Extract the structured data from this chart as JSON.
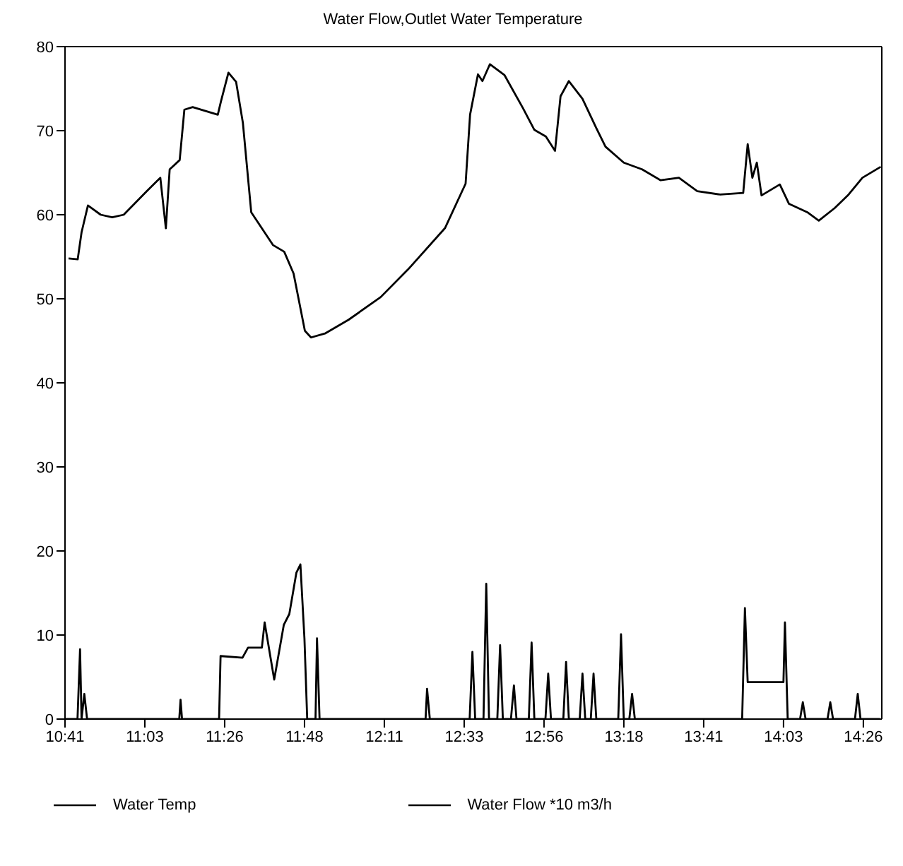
{
  "chart_data": {
    "type": "line",
    "title": "Water Flow,Outlet Water Temperature",
    "xlim": [
      10.6833,
      14.52
    ],
    "xticks": [
      {
        "value": 10.6833,
        "label": "10:41"
      },
      {
        "value": 11.0583,
        "label": "11:03"
      },
      {
        "value": 11.4333,
        "label": "11:26"
      },
      {
        "value": 11.8083,
        "label": "11:48"
      },
      {
        "value": 12.1833,
        "label": "12:11"
      },
      {
        "value": 12.5583,
        "label": "12:33"
      },
      {
        "value": 12.9333,
        "label": "12:56"
      },
      {
        "value": 13.3083,
        "label": "13:18"
      },
      {
        "value": 13.6833,
        "label": "13:41"
      },
      {
        "value": 14.0583,
        "label": "14:03"
      },
      {
        "value": 14.4333,
        "label": "14:26"
      }
    ],
    "ylim": [
      0,
      80
    ],
    "yticks": [
      0,
      10,
      20,
      30,
      40,
      50,
      60,
      70,
      80
    ],
    "legend": "bottom",
    "marker": "none",
    "line_style": "solid",
    "series": [
      {
        "name": "Water Temp",
        "color": "#000000",
        "x": [
          10.7,
          10.743,
          10.761,
          10.791,
          10.851,
          10.905,
          10.959,
          11.067,
          11.131,
          11.157,
          11.175,
          11.222,
          11.244,
          11.283,
          11.401,
          11.416,
          11.451,
          11.487,
          11.519,
          11.558,
          11.66,
          11.713,
          11.757,
          11.81,
          11.839,
          11.907,
          12.015,
          12.166,
          12.295,
          12.468,
          12.565,
          12.586,
          12.623,
          12.644,
          12.679,
          12.748,
          12.834,
          12.888,
          12.942,
          12.985,
          13.011,
          13.05,
          13.114,
          13.179,
          13.222,
          13.308,
          13.394,
          13.481,
          13.567,
          13.653,
          13.761,
          13.869,
          13.89,
          13.912,
          13.933,
          13.955,
          14.041,
          14.084,
          14.17,
          14.224,
          14.299,
          14.364,
          14.429,
          14.515
        ],
        "values": [
          54.8,
          54.7,
          57.9,
          61.1,
          60.0,
          59.7,
          60.0,
          62.8,
          64.4,
          58.4,
          65.4,
          66.5,
          72.5,
          72.8,
          71.9,
          73.5,
          76.9,
          75.8,
          70.9,
          60.3,
          56.4,
          55.6,
          53.0,
          46.2,
          45.4,
          45.9,
          47.5,
          50.2,
          53.5,
          58.4,
          63.7,
          71.9,
          76.7,
          75.9,
          77.9,
          76.6,
          72.7,
          70.1,
          69.3,
          67.6,
          74.1,
          75.9,
          73.8,
          70.3,
          68.1,
          66.2,
          65.4,
          64.1,
          64.4,
          62.8,
          62.4,
          62.6,
          68.4,
          64.4,
          66.2,
          62.3,
          63.6,
          61.3,
          60.3,
          59.3,
          60.8,
          62.4,
          64.4,
          65.7
        ]
      },
      {
        "name": "Water Flow *10 m3/h",
        "color": "#000000",
        "x": [
          10.6833,
          10.742,
          10.754,
          10.761,
          10.774,
          10.787,
          11.22,
          11.226,
          11.233,
          11.407,
          11.414,
          11.517,
          11.543,
          11.608,
          11.621,
          11.666,
          11.711,
          11.737,
          11.77,
          11.789,
          11.808,
          11.821,
          11.86,
          11.867,
          11.879,
          12.377,
          12.384,
          12.397,
          12.584,
          12.597,
          12.61,
          12.649,
          12.662,
          12.675,
          12.714,
          12.727,
          12.74,
          12.778,
          12.792,
          12.804,
          12.862,
          12.875,
          12.888,
          12.94,
          12.953,
          12.966,
          13.024,
          13.037,
          13.05,
          13.101,
          13.114,
          13.127,
          13.153,
          13.166,
          13.179,
          13.282,
          13.295,
          13.308,
          13.334,
          13.347,
          13.36,
          13.864,
          13.877,
          13.89,
          14.058,
          14.065,
          14.078,
          14.136,
          14.149,
          14.162,
          14.265,
          14.278,
          14.291,
          14.394,
          14.407,
          14.42,
          14.511
        ],
        "values": [
          0,
          0,
          8.3,
          0,
          3,
          0,
          0,
          2.3,
          0,
          0,
          7.5,
          7.3,
          8.5,
          8.5,
          11.5,
          4.7,
          11.2,
          12.5,
          17.4,
          18.4,
          9.6,
          0,
          0,
          9.6,
          0,
          0,
          3.6,
          0,
          0,
          8,
          0,
          0,
          16.1,
          0,
          0,
          8.8,
          0,
          0,
          4,
          0,
          0,
          9.1,
          0,
          0,
          5.4,
          0,
          0,
          6.8,
          0,
          0,
          5.4,
          0,
          0,
          5.4,
          0,
          0,
          10.1,
          0,
          0,
          3,
          0,
          0,
          13.2,
          4.4,
          4.4,
          11.5,
          0,
          0,
          2,
          0,
          0,
          2,
          0,
          0,
          3,
          0,
          0
        ]
      }
    ]
  }
}
